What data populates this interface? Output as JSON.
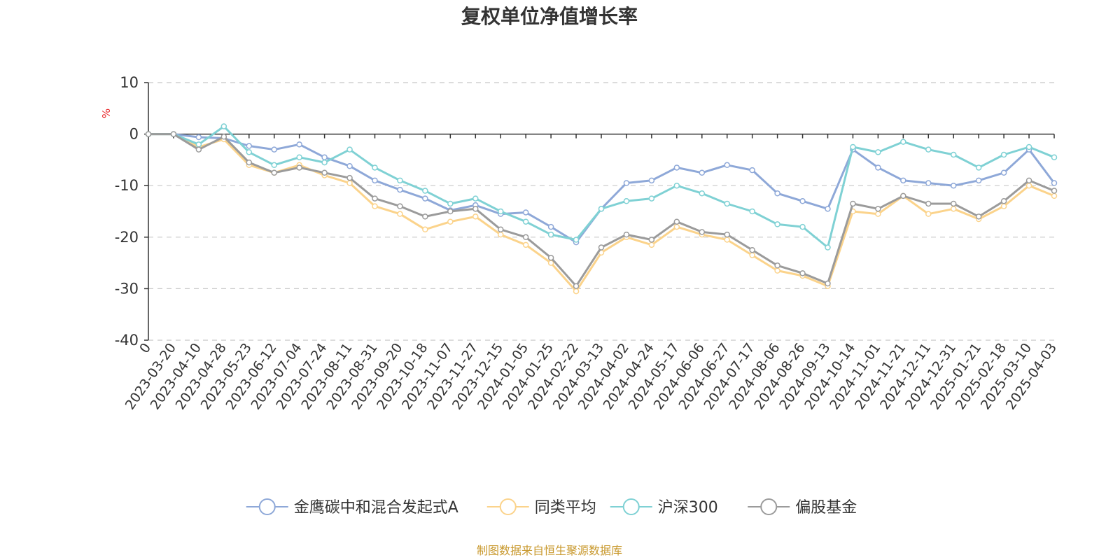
{
  "chart_data": {
    "type": "line",
    "title": "复权单位净值增长率",
    "ylabel": "%",
    "xlabel": "",
    "ylim": [
      -40,
      10
    ],
    "yticks": [
      "10",
      "0",
      "-10",
      "-20",
      "-30",
      "-40"
    ],
    "ytick_values": [
      10,
      0,
      -10,
      -20,
      -30,
      -40
    ],
    "x_origin_label": "0",
    "categories": [
      "2023-03-20",
      "2023-04-10",
      "2023-04-28",
      "2023-05-23",
      "2023-06-12",
      "2023-07-04",
      "2023-07-24",
      "2023-08-11",
      "2023-08-31",
      "2023-09-20",
      "2023-10-18",
      "2023-11-07",
      "2023-11-27",
      "2023-12-15",
      "2024-01-05",
      "2024-01-25",
      "2024-02-22",
      "2024-03-13",
      "2024-04-02",
      "2024-04-24",
      "2024-05-17",
      "2024-06-06",
      "2024-06-27",
      "2024-07-17",
      "2024-08-06",
      "2024-08-26",
      "2024-09-13",
      "2024-10-14",
      "2024-11-01",
      "2024-11-21",
      "2024-12-11",
      "2024-12-31",
      "2025-01-21",
      "2025-02-18",
      "2025-03-10",
      "2025-04-03"
    ],
    "grid": true,
    "legend_position": "bottom-center",
    "series": [
      {
        "name": "金鹰碳中和混合发起式A",
        "color": "#8ea8d8",
        "values": [
          0,
          -0.6,
          -0.8,
          -2.3,
          -3.0,
          -2.0,
          -4.5,
          -6.2,
          -9.0,
          -10.8,
          -12.5,
          -14.8,
          -13.8,
          -15.5,
          -15.2,
          -18.0,
          -21.0,
          -14.5,
          -9.5,
          -9.0,
          -6.5,
          -7.5,
          -6.0,
          -7.0,
          -11.5,
          -13.0,
          -14.5,
          -3.0,
          -6.5,
          -9.0,
          -9.5,
          -10.0,
          -9.0,
          -7.5,
          -3.0,
          -9.5
        ]
      },
      {
        "name": "同类平均",
        "color": "#fbd38b",
        "values": [
          0,
          -2.5,
          -1.0,
          -6.0,
          -7.5,
          -6.0,
          -8.0,
          -9.5,
          -14.0,
          -15.5,
          -18.5,
          -17.0,
          -16.0,
          -19.5,
          -21.5,
          -25.0,
          -30.5,
          -23.0,
          -20.0,
          -21.5,
          -18.0,
          -19.5,
          -20.5,
          -23.5,
          -26.5,
          -27.5,
          -29.5,
          -15.0,
          -15.5,
          -12.0,
          -15.5,
          -14.5,
          -16.5,
          -14.0,
          -10.0,
          -12.0
        ]
      },
      {
        "name": "沪深300",
        "color": "#7fd1d4",
        "values": [
          0,
          -2.0,
          1.5,
          -3.5,
          -6.0,
          -4.5,
          -5.5,
          -3.0,
          -6.5,
          -9.0,
          -11.0,
          -13.5,
          -12.5,
          -15.0,
          -17.0,
          -19.5,
          -20.5,
          -14.5,
          -13.0,
          -12.5,
          -10.0,
          -11.5,
          -13.5,
          -15.0,
          -17.5,
          -18.0,
          -22.0,
          -2.5,
          -3.5,
          -1.5,
          -3.0,
          -4.0,
          -6.5,
          -4.0,
          -2.5,
          -4.5
        ]
      },
      {
        "name": "偏股基金",
        "color": "#9b9b9b",
        "values": [
          0,
          -3.0,
          -0.5,
          -5.5,
          -7.5,
          -6.5,
          -7.5,
          -8.5,
          -12.5,
          -14.0,
          -16.0,
          -15.0,
          -14.5,
          -18.5,
          -20.0,
          -24.0,
          -29.5,
          -22.0,
          -19.5,
          -20.5,
          -17.0,
          -19.0,
          -19.5,
          -22.5,
          -25.5,
          -27.0,
          -29.0,
          -13.5,
          -14.5,
          -12.0,
          -13.5,
          -13.5,
          -16.0,
          -13.0,
          -9.0,
          -11.0
        ]
      }
    ]
  },
  "legend": [
    {
      "label": "金鹰碳中和混合发起式A",
      "color": "#8ea8d8"
    },
    {
      "label": "同类平均",
      "color": "#fbd38b"
    },
    {
      "label": "沪深300",
      "color": "#7fd1d4"
    },
    {
      "label": "偏股基金",
      "color": "#9b9b9b"
    }
  ],
  "source": "制图数据来自恒生聚源数据库"
}
